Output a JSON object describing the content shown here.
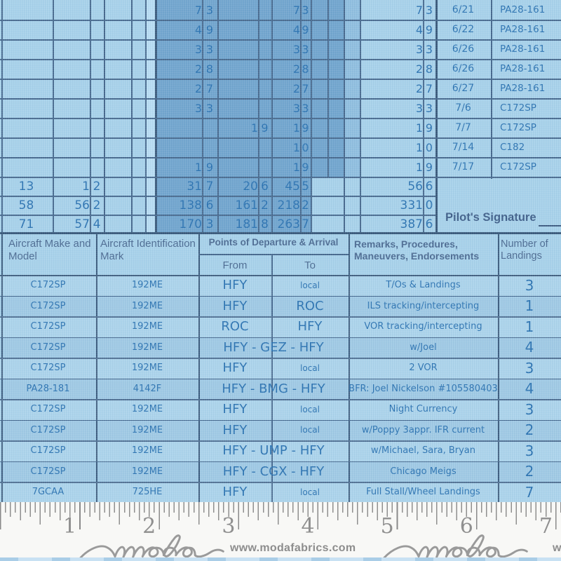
{
  "colors": {
    "fabric_light": "#a7d1ea",
    "fabric_dark_band": "#71a5ce",
    "fabric_medium_band": "#8fbedf",
    "grid_line": "#47698e",
    "handwriting_ink": "#2d74b2",
    "printed_ink": "#4c6b92",
    "ruler_gray": "#8f8f8f"
  },
  "top_section": {
    "rows": [
      {
        "p1m": "7",
        "p1d": "3",
        "p2m": "",
        "p2d": "",
        "p3m": "7",
        "p3d": "3",
        "p4m": "7",
        "p4d": "3",
        "date": "6/21",
        "ac": "PA28-161"
      },
      {
        "p1m": "4",
        "p1d": "9",
        "p2m": "",
        "p2d": "",
        "p3m": "4",
        "p3d": "9",
        "p4m": "4",
        "p4d": "9",
        "date": "6/22",
        "ac": "PA28-161"
      },
      {
        "p1m": "3",
        "p1d": "3",
        "p2m": "",
        "p2d": "",
        "p3m": "3",
        "p3d": "3",
        "p4m": "3",
        "p4d": "3",
        "date": "6/26",
        "ac": "PA28-161"
      },
      {
        "p1m": "2",
        "p1d": "8",
        "p2m": "",
        "p2d": "",
        "p3m": "2",
        "p3d": "8",
        "p4m": "2",
        "p4d": "8",
        "date": "6/26",
        "ac": "PA28-161"
      },
      {
        "p1m": "2",
        "p1d": "7",
        "p2m": "",
        "p2d": "",
        "p3m": "2",
        "p3d": "7",
        "p4m": "2",
        "p4d": "7",
        "date": "6/27",
        "ac": "PA28-161"
      },
      {
        "p1m": "3",
        "p1d": "3",
        "p2m": "",
        "p2d": "",
        "p3m": "3",
        "p3d": "3",
        "p4m": "3",
        "p4d": "3",
        "date": "7/6",
        "ac": "C172SP"
      },
      {
        "p1m": "",
        "p1d": "",
        "p2m": "1",
        "p2d": "9",
        "p3m": "1",
        "p3d": "9",
        "p4m": "1",
        "p4d": "9",
        "date": "7/7",
        "ac": "C172SP"
      },
      {
        "p1m": "",
        "p1d": "",
        "p2m": "",
        "p2d": "",
        "p3m": "1",
        "p3d": "0",
        "p4m": "1",
        "p4d": "0",
        "date": "7/14",
        "ac": "C182"
      },
      {
        "p1m": "1",
        "p1d": "9",
        "p2m": "",
        "p2d": "",
        "p3m": "1",
        "p3d": "9",
        "p4m": "1",
        "p4d": "9",
        "date": "7/17",
        "ac": "C172SP"
      }
    ],
    "totals": [
      {
        "a": "13",
        "b": "1",
        "c": "2",
        "p1m": "31",
        "p1d": "7",
        "p2m": "20",
        "p2d": "6",
        "p3m": "45",
        "p3d": "5",
        "p4m": "56",
        "p4d": "6"
      },
      {
        "a": "58",
        "b": "56",
        "c": "2",
        "p1m": "138",
        "p1d": "6",
        "p2m": "161",
        "p2d": "2",
        "p3m": "218",
        "p3d": "2",
        "p4m": "331",
        "p4d": "0"
      },
      {
        "a": "71",
        "b": "57",
        "c": "4",
        "p1m": "170",
        "p1d": "3",
        "p2m": "181",
        "p2d": "8",
        "p3m": "263",
        "p3d": "7",
        "p4m": "387",
        "p4d": "6"
      }
    ],
    "signature_label": "Pilot's Signature"
  },
  "log_table": {
    "header": {
      "make": "Aircraft Make and Model",
      "id_mark": "Aircraft Identification Mark",
      "points": "Points of Departure & Arrival",
      "from": "From",
      "to": "To",
      "remarks": "Remarks, Procedures, Maneuvers, Endorsements",
      "landings": "Number of Landings"
    },
    "rows": [
      {
        "make": "C172SP",
        "id": "192ME",
        "from": "HFY",
        "to": "local",
        "route": "",
        "remarks": "T/Os & Landings",
        "land": "3"
      },
      {
        "make": "C172SP",
        "id": "192ME",
        "from": "HFY",
        "to": "ROC",
        "route": "",
        "remarks": "ILS tracking/intercepting",
        "land": "1"
      },
      {
        "make": "C172SP",
        "id": "192ME",
        "from": "ROC",
        "to": "HFY",
        "route": "",
        "remarks": "VOR tracking/intercepting",
        "land": "1"
      },
      {
        "make": "C172SP",
        "id": "192ME",
        "from": "",
        "to": "",
        "route": "HFY - GEZ - HFY",
        "remarks": "w/Joel",
        "land": "4"
      },
      {
        "make": "C172SP",
        "id": "192ME",
        "from": "HFY",
        "to": "local",
        "route": "",
        "remarks": "2 VOR",
        "land": "3"
      },
      {
        "make": "PA28-181",
        "id": "4142F",
        "from": "",
        "to": "",
        "route": "HFY - BMG - HFY",
        "remarks": "BFR: Joel Nickelson #105580403",
        "land": "4"
      },
      {
        "make": "C172SP",
        "id": "192ME",
        "from": "HFY",
        "to": "local",
        "route": "",
        "remarks": "Night Currency",
        "land": "3"
      },
      {
        "make": "C172SP",
        "id": "192ME",
        "from": "HFY",
        "to": "local",
        "route": "",
        "remarks": "w/Poppy  3appr. IFR current",
        "land": "2"
      },
      {
        "make": "C172SP",
        "id": "192ME",
        "from": "",
        "to": "",
        "route": "HFY - UMP - HFY",
        "remarks": "w/Michael, Sara, Bryan",
        "land": "3"
      },
      {
        "make": "C172SP",
        "id": "192ME",
        "from": "",
        "to": "",
        "route": "HFY - CGX - HFY",
        "remarks": "Chicago Meigs",
        "land": "2"
      },
      {
        "make": "7GCAA",
        "id": "725HE",
        "from": "HFY",
        "to": "local",
        "route": "",
        "remarks": "Full Stall/Wheel Landings",
        "land": "7"
      }
    ]
  },
  "ruler": {
    "numbers": [
      "1",
      "2",
      "3",
      "4",
      "5",
      "6",
      "7"
    ],
    "brand": "moda",
    "url": "www.modafabrics.com",
    "url_partial": "w"
  }
}
